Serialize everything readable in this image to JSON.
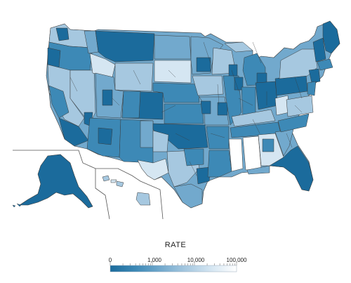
{
  "legend": {
    "title": "RATE",
    "ticks": [
      "0",
      "1,000",
      "10,000",
      "100,000"
    ],
    "scale": "log",
    "colors": [
      "#1b6b9c",
      "#3d89b6",
      "#72a9cd",
      "#a6c8e0",
      "#d5e6f2",
      "#ffffff"
    ]
  },
  "map": {
    "stroke_color": "#3a3a3a",
    "inset_border_color": "#555555",
    "background": "#ffffff"
  }
}
